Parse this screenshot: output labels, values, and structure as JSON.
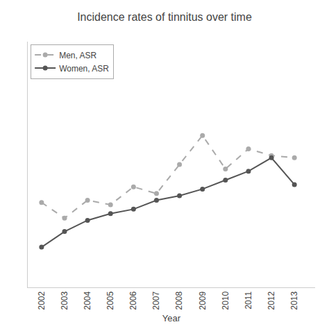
{
  "chart_data": {
    "type": "line",
    "title": "Incidence rates of tinnitus over time",
    "xlabel": "Year",
    "x": [
      2002,
      2003,
      2004,
      2005,
      2006,
      2007,
      2008,
      2009,
      2010,
      2011,
      2012,
      2013
    ],
    "series": [
      {
        "name": "Men, ASR",
        "color": "#aaaaaa",
        "line_style": "dashed",
        "marker": "circle",
        "values": [
          5.8,
          5.1,
          5.9,
          5.7,
          6.5,
          6.2,
          7.5,
          8.8,
          7.3,
          8.2,
          7.9,
          7.8
        ]
      },
      {
        "name": "Women, ASR",
        "color": "#555555",
        "line_style": "solid",
        "marker": "circle",
        "values": [
          3.8,
          4.5,
          5.0,
          5.3,
          5.5,
          5.9,
          6.1,
          6.4,
          6.8,
          7.2,
          7.8,
          6.6
        ]
      }
    ],
    "xlim": [
      2001.4,
      2013.9
    ],
    "xticks": [
      2002,
      2003,
      2004,
      2005,
      2006,
      2007,
      2008,
      2009,
      2010,
      2011,
      2012,
      2013
    ],
    "ylim": [
      2.0,
      13.0
    ],
    "yticks": [],
    "tick_labels": "x",
    "grid": false,
    "legend": "upper left"
  }
}
